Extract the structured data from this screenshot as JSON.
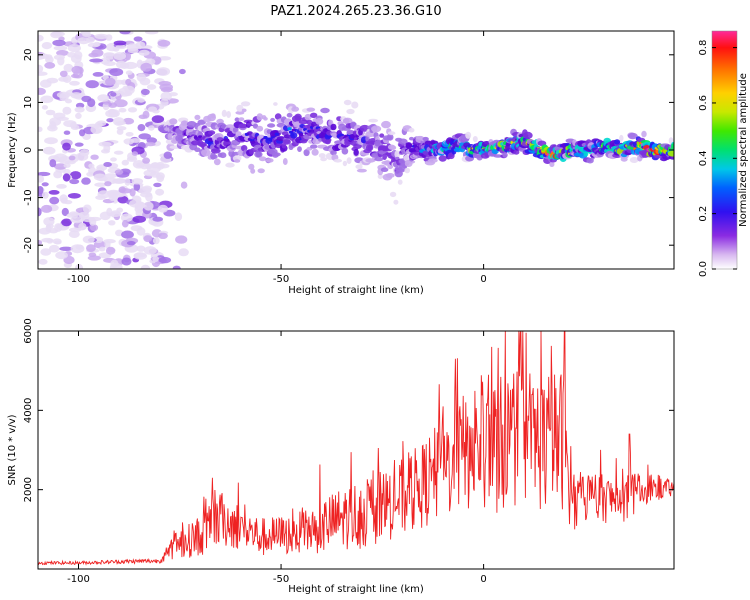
{
  "figure": {
    "title": "PAZ1.2024.265.23.36.G10"
  },
  "colors": {
    "snr_line": "#ee2222",
    "colormap": [
      "#e8dcf4",
      "#c9a8ee",
      "#a070e6",
      "#7b30dd",
      "#5b08d6",
      "#2a18f0",
      "#0090f8",
      "#00d8d0",
      "#00e858",
      "#a8e800",
      "#f8d800",
      "#ff7800",
      "#ff1818",
      "#ff2aa0"
    ]
  },
  "chart_data": [
    {
      "type": "heatmap",
      "xlabel": "Height of straight line (km)",
      "ylabel": "Frequency (Hz)",
      "xlim": [
        -110,
        47
      ],
      "ylim": [
        -25,
        25
      ],
      "xticks": [
        -100,
        -50,
        0
      ],
      "yticks": [
        -20,
        -10,
        0,
        10,
        20
      ],
      "xtick_labels": [
        "-100",
        "-50",
        "0"
      ],
      "ytick_labels": [
        "-20",
        "-10",
        "0",
        "10",
        "20"
      ],
      "colorbar": {
        "label": "Normalized spectral amplitude",
        "range": [
          0,
          0.86
        ],
        "ticks": [
          0.0,
          0.2,
          0.4,
          0.6,
          0.8
        ],
        "tick_labels": [
          "0.0",
          "0.2",
          "0.4",
          "0.6",
          "0.8"
        ]
      },
      "ridge": {
        "height_km": [
          -78,
          -72,
          -66,
          -60,
          -54,
          -48,
          -42,
          -36,
          -30,
          -26,
          -22,
          -18,
          -14,
          -10,
          -6,
          -2,
          2,
          6,
          10,
          14,
          18,
          22,
          26,
          30,
          34,
          38,
          42,
          46
        ],
        "frequency_hz": [
          4,
          3,
          2,
          3,
          2,
          4,
          4,
          3,
          2,
          1,
          -2,
          1,
          0,
          0,
          1,
          0,
          0,
          1,
          2,
          0,
          -1,
          0,
          0,
          1,
          0,
          1,
          0,
          0
        ],
        "spread_hz": [
          3,
          4,
          5,
          6,
          7,
          6,
          6,
          6,
          6,
          6,
          7,
          4,
          3,
          2.5,
          2.5,
          2,
          2,
          2.5,
          2.5,
          2,
          2,
          2,
          2.5,
          2.5,
          2,
          2.5,
          2,
          2
        ],
        "peak_amplitude": [
          0.15,
          0.25,
          0.3,
          0.3,
          0.3,
          0.32,
          0.3,
          0.3,
          0.28,
          0.25,
          0.2,
          0.3,
          0.38,
          0.45,
          0.5,
          0.55,
          0.6,
          0.55,
          0.55,
          0.65,
          0.75,
          0.55,
          0.45,
          0.5,
          0.55,
          0.6,
          0.75,
          0.65
        ]
      }
    },
    {
      "type": "line",
      "xlabel": "Height of straight line (km)",
      "ylabel": "SNR (10 * v/v)",
      "xlim": [
        -110,
        47
      ],
      "ylim": [
        0,
        6000
      ],
      "xticks": [
        -100,
        -50,
        0
      ],
      "yticks": [
        2000,
        4000,
        6000
      ],
      "xtick_labels": [
        "-100",
        "-50",
        "0"
      ],
      "ytick_labels": [
        "2000",
        "4000",
        "6000"
      ],
      "series": [
        {
          "x": [
            -110,
            -100,
            -90,
            -80,
            -76,
            -72,
            -68,
            -65,
            -60,
            -55,
            -50,
            -45,
            -40,
            -35,
            -30,
            -25,
            -20,
            -15,
            -10,
            -5,
            0,
            5,
            10,
            15,
            20,
            22,
            25,
            30,
            35,
            40,
            47
          ],
          "y": [
            150,
            150,
            180,
            200,
            550,
            700,
            900,
            1200,
            1000,
            750,
            800,
            850,
            1000,
            1200,
            1300,
            1500,
            1700,
            2000,
            2400,
            2800,
            2900,
            3000,
            3200,
            3000,
            3100,
            1500,
            1800,
            1700,
            1700,
            2000,
            2000
          ],
          "noise": [
            40,
            40,
            50,
            60,
            350,
            450,
            600,
            700,
            600,
            500,
            500,
            550,
            700,
            800,
            900,
            900,
            1000,
            1100,
            1300,
            1500,
            1700,
            1800,
            1800,
            1800,
            1800,
            700,
            700,
            600,
            600,
            400,
            200
          ],
          "peaks": [
            [
              -67,
              2300
            ],
            [
              -10,
              4100
            ],
            [
              -7,
              5300
            ],
            [
              2,
              5600
            ],
            [
              9,
              5950
            ],
            [
              12,
              4400
            ],
            [
              20,
              6000
            ],
            [
              36,
              3400
            ]
          ]
        }
      ]
    }
  ]
}
